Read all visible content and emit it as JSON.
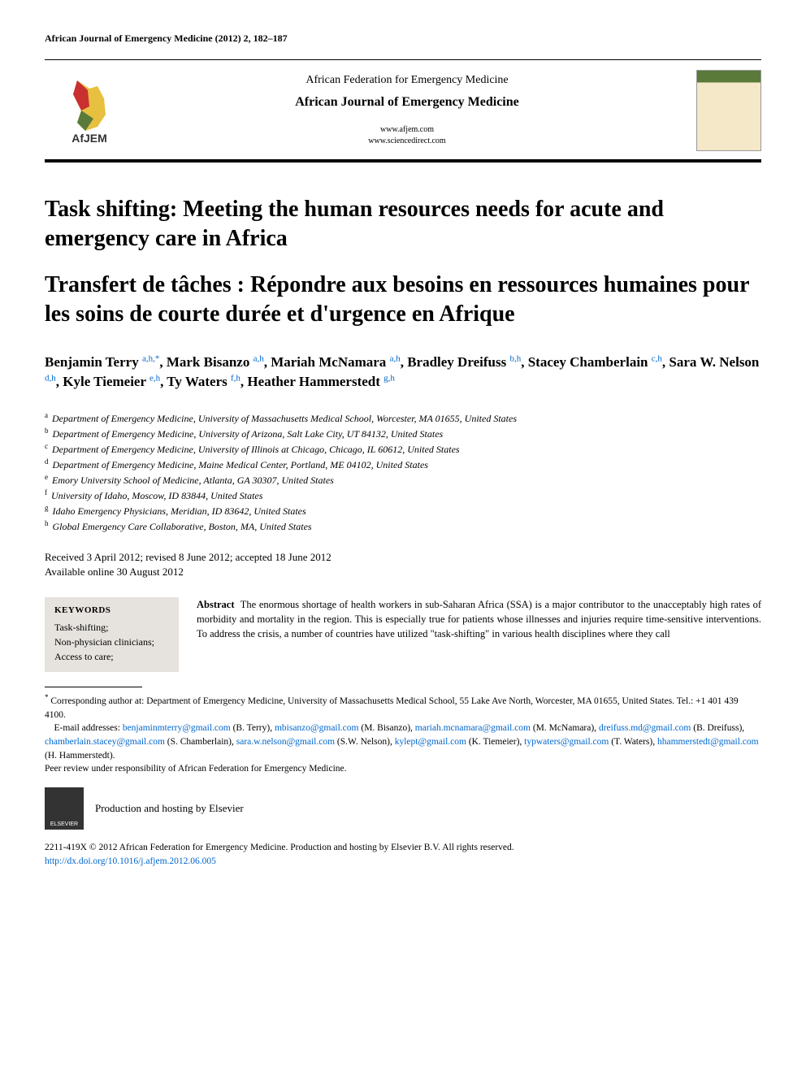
{
  "citation": "African Journal of Emergency Medicine (2012) 2, 182–187",
  "banner": {
    "federation": "African Federation for Emergency Medicine",
    "journal": "African Journal of Emergency Medicine",
    "link1": "www.afjem.com",
    "link2": "www.sciencedirect.com",
    "logo_text": "AfJEM"
  },
  "title_en": "Task shifting: Meeting the human resources needs for acute and emergency care in Africa",
  "title_fr": "Transfert de tâches : Répondre aux besoins en ressources humaines pour les soins de courte durée et d'urgence en Afrique",
  "authors": [
    {
      "name": "Benjamin Terry",
      "aff": "a,h,*"
    },
    {
      "name": "Mark Bisanzo",
      "aff": "a,h"
    },
    {
      "name": "Mariah McNamara",
      "aff": "a,h"
    },
    {
      "name": "Bradley Dreifuss",
      "aff": "b,h"
    },
    {
      "name": "Stacey Chamberlain",
      "aff": "c,h"
    },
    {
      "name": "Sara W. Nelson",
      "aff": "d,h"
    },
    {
      "name": "Kyle Tiemeier",
      "aff": "e,h"
    },
    {
      "name": "Ty Waters",
      "aff": "f,h"
    },
    {
      "name": "Heather Hammerstedt",
      "aff": "g,h"
    }
  ],
  "affiliations": [
    {
      "key": "a",
      "text": "Department of Emergency Medicine, University of Massachusetts Medical School, Worcester, MA 01655, United States"
    },
    {
      "key": "b",
      "text": "Department of Emergency Medicine, University of Arizona, Salt Lake City, UT 84132, United States"
    },
    {
      "key": "c",
      "text": "Department of Emergency Medicine, University of Illinois at Chicago, Chicago, IL 60612, United States"
    },
    {
      "key": "d",
      "text": "Department of Emergency Medicine, Maine Medical Center, Portland, ME 04102, United States"
    },
    {
      "key": "e",
      "text": "Emory University School of Medicine, Atlanta, GA 30307, United States"
    },
    {
      "key": "f",
      "text": "University of Idaho, Moscow, ID 83844, United States"
    },
    {
      "key": "g",
      "text": "Idaho Emergency Physicians, Meridian, ID 83642, United States"
    },
    {
      "key": "h",
      "text": "Global  Emergency Care Collaborative, Boston, MA, United States"
    }
  ],
  "dates": {
    "line1": "Received 3 April 2012; revised 8 June 2012; accepted 18 June 2012",
    "line2": "Available online 30 August 2012"
  },
  "keywords": {
    "title": "KEYWORDS",
    "items": "Task-shifting;\nNon-physician clinicians;\nAccess to care;"
  },
  "abstract": {
    "label": "Abstract",
    "text": "The enormous shortage of health workers in sub-Saharan Africa (SSA) is a major contributor to the unacceptably high rates of morbidity and mortality in the region. This is especially true for patients whose illnesses and injuries require time-sensitive interventions. To address the crisis, a number of countries have utilized \"task-shifting\" in various health disciplines where they call"
  },
  "footnotes": {
    "corresponding": "Corresponding author at: Department of Emergency Medicine, University of Massachusetts Medical School, 55 Lake Ave North, Worcester, MA 01655, United States. Tel.: +1 401 439 4100.",
    "emails_label": "E-mail addresses:",
    "emails": [
      {
        "addr": "benjaminmterry@gmail.com",
        "who": "(B. Terry)"
      },
      {
        "addr": "mbisanzo@gmail.com",
        "who": "(M. Bisanzo)"
      },
      {
        "addr": "mariah.mcnamara@gmail.com",
        "who": "(M. McNamara)"
      },
      {
        "addr": "dreifuss.md@gmail.com",
        "who": "(B. Dreifuss)"
      },
      {
        "addr": "chamberlain.stacey@gmail.com",
        "who": "(S. Chamberlain)"
      },
      {
        "addr": "sara.w.nelson@gmail.com",
        "who": "(S.W. Nelson)"
      },
      {
        "addr": "kylept@gmail.com",
        "who": "(K. Tiemeier)"
      },
      {
        "addr": "typwaters@gmail.com",
        "who": "(T. Waters)"
      },
      {
        "addr": "hhammerstedt@gmail.com",
        "who": "(H. Hammerstedt)"
      }
    ],
    "peer_review": "Peer review under responsibility of African Federation for Emergency Medicine."
  },
  "elsevier": {
    "logo_text": "ELSEVIER",
    "hosting": "Production and hosting by Elsevier"
  },
  "copyright": {
    "issn": "2211-419X © 2012 African Federation for Emergency Medicine. Production and hosting by Elsevier B.V. All rights reserved.",
    "doi": "http://dx.doi.org/10.1016/j.afjem.2012.06.005"
  },
  "colors": {
    "link": "#0066cc",
    "keywords_bg": "#e6e3de",
    "logo_green": "#5a7a3a",
    "logo_red": "#c93030",
    "logo_yellow": "#e8c040"
  }
}
